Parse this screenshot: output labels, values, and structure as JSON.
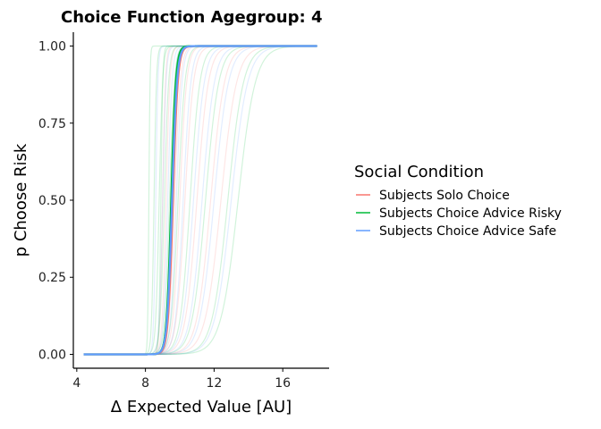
{
  "chart_data": {
    "type": "line",
    "title": "Choice Function Agegroup: 4",
    "xlabel": "Δ Expected Value [AU]",
    "ylabel": "p Choose Risk",
    "xlim": [
      3.8,
      18.7
    ],
    "ylim": [
      -0.045,
      1.045
    ],
    "x_ticks": [
      4,
      8,
      12,
      16
    ],
    "y_ticks": [
      0.0,
      0.25,
      0.5,
      0.75,
      1.0
    ],
    "x_tick_labels": [
      "4",
      "8",
      "12",
      "16"
    ],
    "y_tick_labels": [
      "0.00",
      "0.25",
      "0.50",
      "0.75",
      "1.00"
    ],
    "x_range_curves": [
      4.4,
      18.0
    ],
    "grid": false,
    "legend": {
      "title": "Social Condition",
      "placement": "right",
      "entries": [
        {
          "name": "Subjects Solo Choice",
          "color": "#F8766D"
        },
        {
          "name": "Subjects Choice Advice Risky",
          "color": "#00BA38"
        },
        {
          "name": "Subjects Choice Advice Safe",
          "color": "#619CFF"
        }
      ]
    },
    "series": [
      {
        "name": "Subjects Solo Choice",
        "color": "#F8766D",
        "curve": "logistic",
        "midpoint": 9.6,
        "slope": 7.0
      },
      {
        "name": "Subjects Choice Advice Risky",
        "color": "#00BA38",
        "curve": "logistic",
        "midpoint": 9.5,
        "slope": 7.5
      },
      {
        "name": "Subjects Choice Advice Safe",
        "color": "#619CFF",
        "curve": "logistic",
        "midpoint": 9.55,
        "slope": 7.0
      }
    ],
    "individual_curves": [
      {
        "group": "Subjects Solo Choice",
        "color": "#F8766D",
        "midpoint": 9.2,
        "slope": 9
      },
      {
        "group": "Subjects Solo Choice",
        "color": "#F8766D",
        "midpoint": 9.7,
        "slope": 6
      },
      {
        "group": "Subjects Solo Choice",
        "color": "#F8766D",
        "midpoint": 10.3,
        "slope": 4
      },
      {
        "group": "Subjects Solo Choice",
        "color": "#F8766D",
        "midpoint": 11.0,
        "slope": 3
      },
      {
        "group": "Subjects Solo Choice",
        "color": "#F8766D",
        "midpoint": 11.8,
        "slope": 2.5
      },
      {
        "group": "Subjects Solo Choice",
        "color": "#F8766D",
        "midpoint": 12.4,
        "slope": 2.2
      },
      {
        "group": "Subjects Solo Choice",
        "color": "#F8766D",
        "midpoint": 9.0,
        "slope": 12
      },
      {
        "group": "Subjects Solo Choice",
        "color": "#F8766D",
        "midpoint": 10.0,
        "slope": 5
      },
      {
        "group": "Subjects Choice Advice Risky",
        "color": "#00BA38",
        "midpoint": 8.2,
        "slope": 30
      },
      {
        "group": "Subjects Choice Advice Risky",
        "color": "#00BA38",
        "midpoint": 8.5,
        "slope": 14
      },
      {
        "group": "Subjects Choice Advice Risky",
        "color": "#00BA38",
        "midpoint": 8.8,
        "slope": 10
      },
      {
        "group": "Subjects Choice Advice Risky",
        "color": "#00BA38",
        "midpoint": 9.1,
        "slope": 8
      },
      {
        "group": "Subjects Choice Advice Risky",
        "color": "#00BA38",
        "midpoint": 9.4,
        "slope": 7
      },
      {
        "group": "Subjects Choice Advice Risky",
        "color": "#00BA38",
        "midpoint": 9.9,
        "slope": 5
      },
      {
        "group": "Subjects Choice Advice Risky",
        "color": "#00BA38",
        "midpoint": 10.6,
        "slope": 3.5
      },
      {
        "group": "Subjects Choice Advice Risky",
        "color": "#00BA38",
        "midpoint": 11.5,
        "slope": 2.6
      },
      {
        "group": "Subjects Choice Advice Risky",
        "color": "#00BA38",
        "midpoint": 12.8,
        "slope": 2.2
      },
      {
        "group": "Subjects Choice Advice Risky",
        "color": "#00BA38",
        "midpoint": 13.4,
        "slope": 2.0
      },
      {
        "group": "Subjects Choice Advice Risky",
        "color": "#00BA38",
        "midpoint": 8.9,
        "slope": 18
      },
      {
        "group": "Subjects Choice Advice Safe",
        "color": "#619CFF",
        "midpoint": 8.6,
        "slope": 16
      },
      {
        "group": "Subjects Choice Advice Safe",
        "color": "#619CFF",
        "midpoint": 9.0,
        "slope": 10
      },
      {
        "group": "Subjects Choice Advice Safe",
        "color": "#619CFF",
        "midpoint": 9.3,
        "slope": 8
      },
      {
        "group": "Subjects Choice Advice Safe",
        "color": "#619CFF",
        "midpoint": 9.8,
        "slope": 6
      },
      {
        "group": "Subjects Choice Advice Safe",
        "color": "#619CFF",
        "midpoint": 10.2,
        "slope": 4.5
      },
      {
        "group": "Subjects Choice Advice Safe",
        "color": "#619CFF",
        "midpoint": 10.8,
        "slope": 3.2
      },
      {
        "group": "Subjects Choice Advice Safe",
        "color": "#619CFF",
        "midpoint": 11.3,
        "slope": 2.8
      },
      {
        "group": "Subjects Choice Advice Safe",
        "color": "#619CFF",
        "midpoint": 12.0,
        "slope": 2.4
      },
      {
        "group": "Subjects Choice Advice Safe",
        "color": "#619CFF",
        "midpoint": 13.0,
        "slope": 2.1
      },
      {
        "group": "Subjects Choice Advice Safe",
        "color": "#619CFF",
        "midpoint": 9.5,
        "slope": 9
      }
    ]
  }
}
